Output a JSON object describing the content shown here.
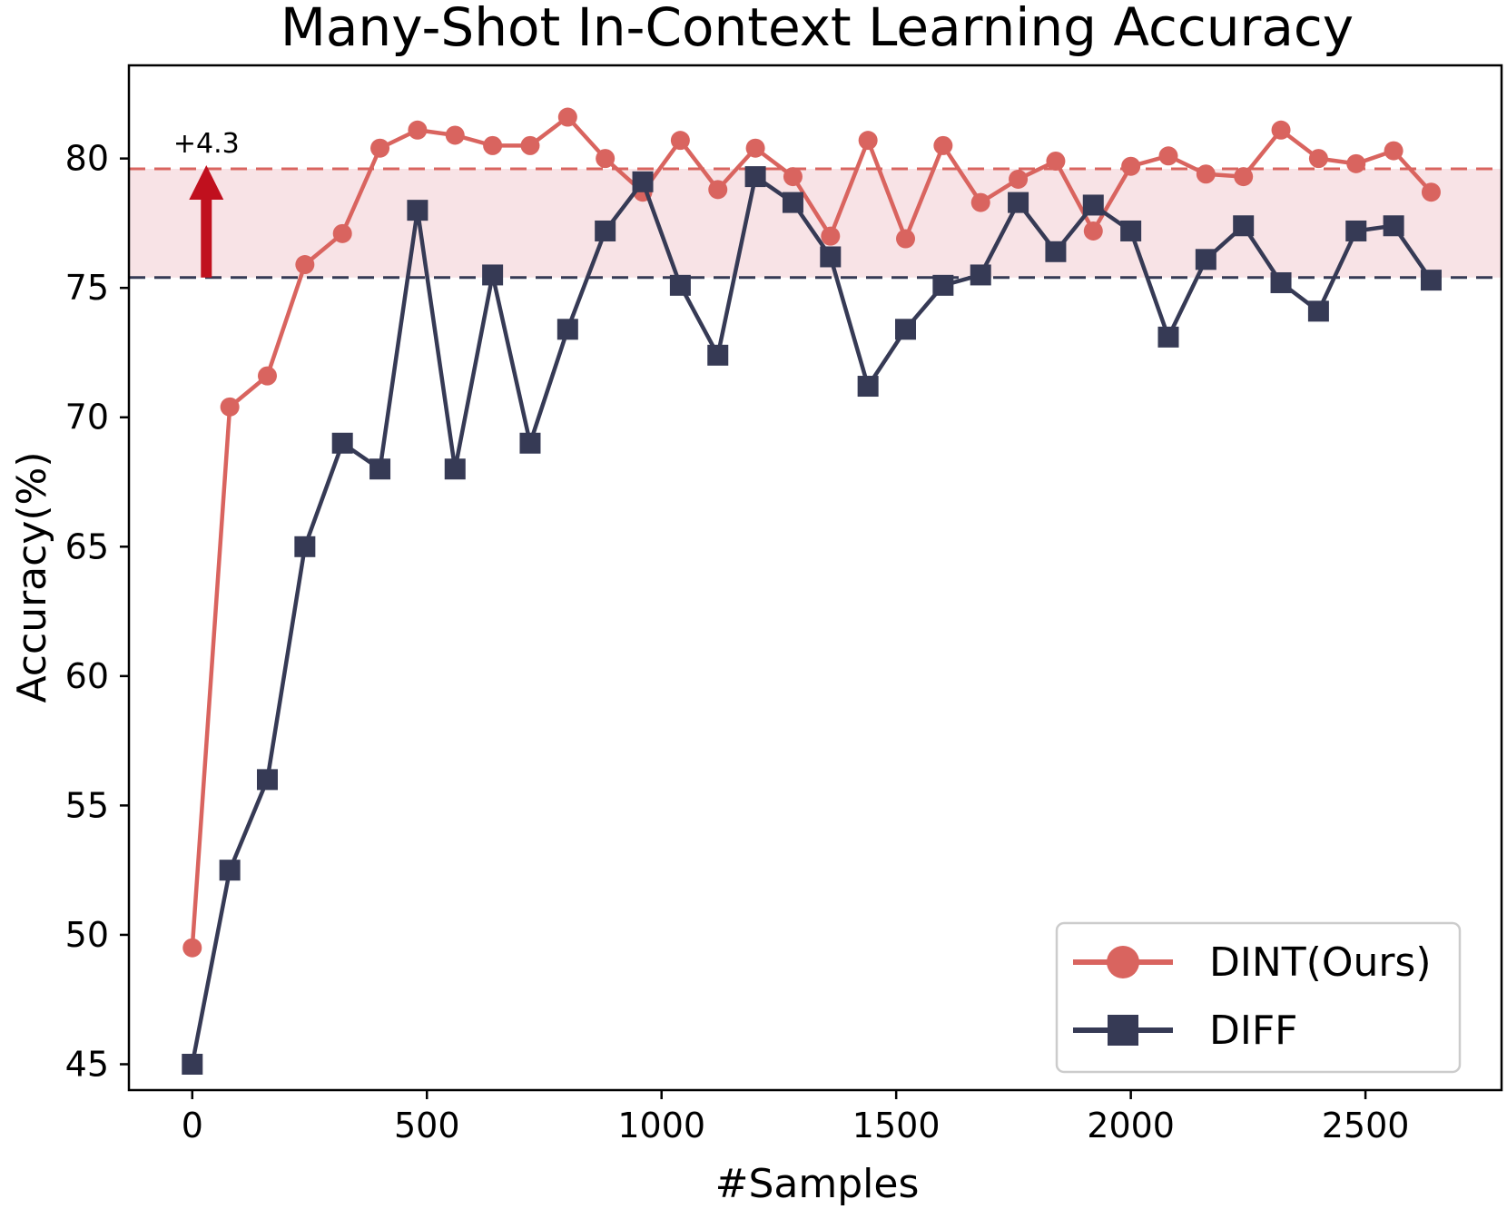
{
  "chart_data": {
    "type": "line",
    "title": "Many-Shot In-Context Learning Accuracy",
    "xlabel": "#Samples",
    "ylabel": "Accuracy(%)",
    "xlim": [
      -135,
      2790
    ],
    "ylim": [
      44,
      83.6
    ],
    "xticks": [
      0,
      500,
      1000,
      1500,
      2000,
      2500
    ],
    "yticks": [
      45,
      50,
      55,
      60,
      65,
      70,
      75,
      80
    ],
    "grid": false,
    "legend": "lower-right",
    "x": [
      0,
      80,
      160,
      240,
      320,
      400,
      480,
      560,
      640,
      720,
      800,
      880,
      960,
      1040,
      1120,
      1200,
      1280,
      1360,
      1440,
      1520,
      1600,
      1680,
      1760,
      1840,
      1920,
      2000,
      2080,
      2160,
      2240,
      2320,
      2400,
      2480,
      2560,
      2640
    ],
    "series": [
      {
        "name": "DINT(Ours)",
        "color": "#d9645f",
        "marker": "circle",
        "values": [
          49.5,
          70.4,
          71.6,
          75.9,
          77.1,
          80.4,
          81.1,
          80.9,
          80.5,
          80.5,
          81.6,
          80.0,
          78.7,
          80.7,
          78.8,
          80.4,
          79.3,
          77.0,
          80.7,
          76.9,
          80.5,
          78.3,
          79.2,
          79.9,
          77.2,
          79.7,
          80.1,
          79.4,
          79.3,
          81.1,
          80.0,
          79.8,
          80.3,
          78.7
        ]
      },
      {
        "name": "DIFF",
        "color": "#363a55",
        "marker": "square",
        "values": [
          45.0,
          52.5,
          56.0,
          65.0,
          69.0,
          68.0,
          78.0,
          68.0,
          75.5,
          69.0,
          73.4,
          77.2,
          79.1,
          75.1,
          72.4,
          79.3,
          78.3,
          76.2,
          71.2,
          73.4,
          75.1,
          75.5,
          78.3,
          76.4,
          78.2,
          77.2,
          73.1,
          76.1,
          77.4,
          75.2,
          74.1,
          77.2,
          77.4,
          75.3
        ]
      }
    ],
    "reference_lines": [
      {
        "y": 79.6,
        "color": "#d9645f",
        "style": "dashed"
      },
      {
        "y": 75.4,
        "color": "#363a55",
        "style": "dashed"
      }
    ],
    "shaded_band": {
      "y_from": 75.4,
      "y_to": 79.6,
      "color": "#f8e3e6"
    },
    "annotation": {
      "text": "+4.3",
      "arrow_x": 30,
      "arrow_from": 75.4,
      "arrow_to": 79.6,
      "color": "#c0101e"
    }
  }
}
